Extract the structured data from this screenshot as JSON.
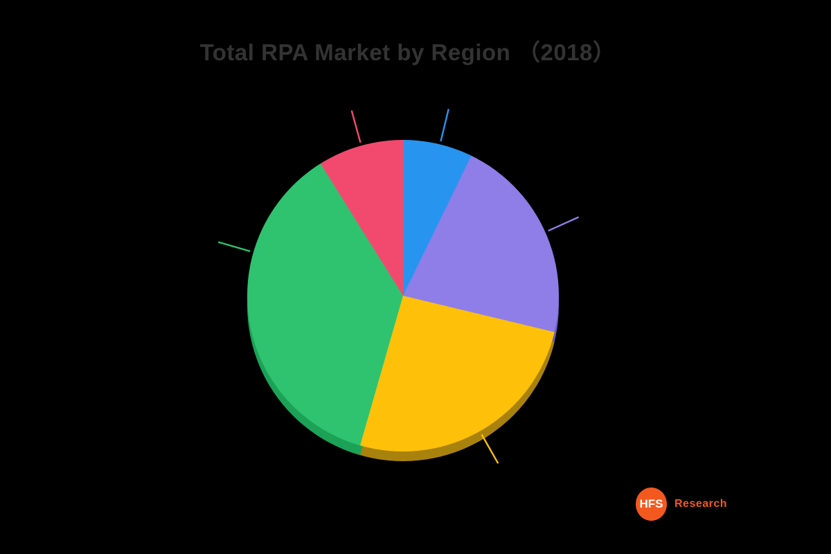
{
  "background_color": "#000000",
  "title": {
    "text": "Total RPA Market by Region （2018）",
    "color": "#333333"
  },
  "chart_data": {
    "type": "pie",
    "title": "Total RPA Market by Region (2018)",
    "legend": "none",
    "labels_visible": false,
    "note": "slice sizes estimated from arc angles; clockwise from 12 o'clock",
    "slices": [
      {
        "name": "slice-blue",
        "color": "#2795F0",
        "dark_color": "#1C6DB3",
        "start_deg": 0,
        "end_deg": 26,
        "value_pct": 7.2
      },
      {
        "name": "slice-purple",
        "color": "#8F7DE8",
        "dark_color": "#6A5CB8",
        "start_deg": 26,
        "end_deg": 103.5,
        "value_pct": 21.5
      },
      {
        "name": "slice-yellow",
        "color": "#FFC00A",
        "dark_color": "#A8820C",
        "start_deg": 103.5,
        "end_deg": 196,
        "value_pct": 25.7
      },
      {
        "name": "slice-green",
        "color": "#2FC36F",
        "dark_color": "#1BA257",
        "start_deg": 196,
        "end_deg": 328,
        "value_pct": 36.7
      },
      {
        "name": "slice-red",
        "color": "#F24A6E",
        "dark_color": "#B23552",
        "start_deg": 328,
        "end_deg": 360,
        "value_pct": 8.9
      }
    ],
    "leader_ticks": [
      {
        "for": "slice-red",
        "angle_deg": 344.5,
        "color": "#F24A6E"
      },
      {
        "for": "slice-blue",
        "angle_deg": 13.7,
        "color": "#2795F0"
      },
      {
        "for": "slice-purple",
        "angle_deg": 65.8,
        "color": "#8F7DE8"
      },
      {
        "for": "slice-yellow",
        "angle_deg": 150.4,
        "color": "#FFC00A"
      },
      {
        "for": "slice-green",
        "angle_deg": 286.3,
        "color": "#2FC36F"
      }
    ]
  },
  "logo": {
    "abbr": "HFS",
    "name": "Research",
    "circle_color": "#F3591F",
    "abbr_color": "#FFFFFF",
    "name_color": "#F3591F"
  }
}
